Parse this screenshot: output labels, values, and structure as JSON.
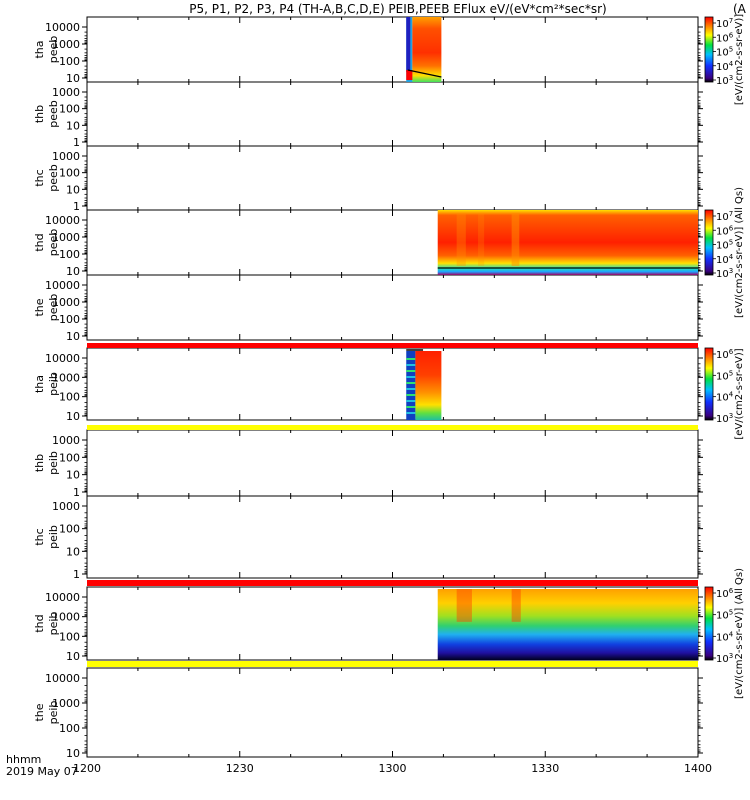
{
  "chart_data": {
    "type": "heatmap",
    "title": "P5, P1, P2, P3, P4 (TH-A,B,C,D,E) PEIB,PEEB EFlux eV/(eV*cm²*sec*sr)",
    "title_tail": "(A",
    "x_label_line1": "hhmm",
    "x_label_line2": "2019 May 07",
    "x_ticks": [
      "1200",
      "1230",
      "1300",
      "1330",
      "1400"
    ],
    "x_range": [
      1200,
      1400
    ],
    "panels": [
      {
        "name": "tha peeb",
        "probe": "tha",
        "product": "peeb",
        "y_ticks": [
          "10000",
          "1000",
          "100",
          "10"
        ],
        "log_y": true,
        "has_data": true
      },
      {
        "name": "thb peeb",
        "probe": "thb",
        "product": "peeb",
        "y_ticks": [
          "1000",
          "100",
          "10",
          "1"
        ],
        "log_y": true,
        "has_data": false
      },
      {
        "name": "thc peeb",
        "probe": "thc",
        "product": "peeb",
        "y_ticks": [
          "1000",
          "100",
          "10",
          "1"
        ],
        "log_y": true,
        "has_data": false
      },
      {
        "name": "thd peeb",
        "probe": "thd",
        "product": "peeb",
        "y_ticks": [
          "10000",
          "1000",
          "100",
          "10"
        ],
        "log_y": true,
        "has_data": true
      },
      {
        "name": "the peeb",
        "probe": "the",
        "product": "peeb",
        "y_ticks": [
          "10000",
          "1000",
          "100",
          "10"
        ],
        "log_y": true,
        "has_data": false
      },
      {
        "name": "tha peib",
        "probe": "tha",
        "product": "peib",
        "y_ticks": [
          "10000",
          "1000",
          "100",
          "10"
        ],
        "log_y": true,
        "has_data": true
      },
      {
        "name": "thb peib",
        "probe": "thb",
        "product": "peib",
        "y_ticks": [
          "1000",
          "100",
          "10",
          "1"
        ],
        "log_y": true,
        "has_data": false
      },
      {
        "name": "thc peib",
        "probe": "thc",
        "product": "peib",
        "y_ticks": [
          "1000",
          "100",
          "10",
          "1"
        ],
        "log_y": true,
        "has_data": false
      },
      {
        "name": "thd peib",
        "probe": "thd",
        "product": "peib",
        "y_ticks": [
          "10000",
          "1000",
          "100",
          "10"
        ],
        "log_y": true,
        "has_data": true
      },
      {
        "name": "the peib",
        "probe": "the",
        "product": "peib",
        "y_ticks": [
          "10000",
          "1000",
          "100",
          "10"
        ],
        "log_y": true,
        "has_data": false
      }
    ],
    "colorbars": [
      {
        "name": "electron flux colorbar 1",
        "exponents": [
          "7",
          "6",
          "5",
          "4",
          "3"
        ],
        "label": "[eV/(cm2-s-sr-eV)]",
        "label_tail": "(Al"
      },
      {
        "name": "electron flux colorbar 2",
        "exponents": [
          "7",
          "6",
          "5",
          "4",
          "3"
        ],
        "label": "[eV/(cm2-s-sr-eV)] (All Qs)",
        "label_tail": "(All Qs)"
      },
      {
        "name": "ion flux colorbar 1",
        "exponents": [
          "6",
          "5",
          "4",
          "3"
        ],
        "label": "[eV/(cm2-s-sr-eV)]",
        "label_tail": ""
      },
      {
        "name": "ion flux colorbar 2",
        "exponents": [
          "6",
          "5",
          "4",
          "3"
        ],
        "label": "[eV/(cm2-s-sr-eV)] (All Qs)",
        "label_tail": "(All Qs)"
      }
    ],
    "colorbar_base": "10",
    "flag_bars": [
      {
        "name": "tha peeb flag bar",
        "color": "#ff0000"
      },
      {
        "name": "tha peib flag bar",
        "color": "#ffff00"
      },
      {
        "name": "thd peeb flag bar",
        "color": "#ff0000"
      },
      {
        "name": "thd peib flag bar",
        "color": "#ffff00"
      }
    ],
    "colors": {
      "high": "#ff2000",
      "mid": "#ffd000",
      "green": "#30e060",
      "cyan": "#20c0f0",
      "blue": "#1040e0",
      "low": "#200080"
    }
  }
}
